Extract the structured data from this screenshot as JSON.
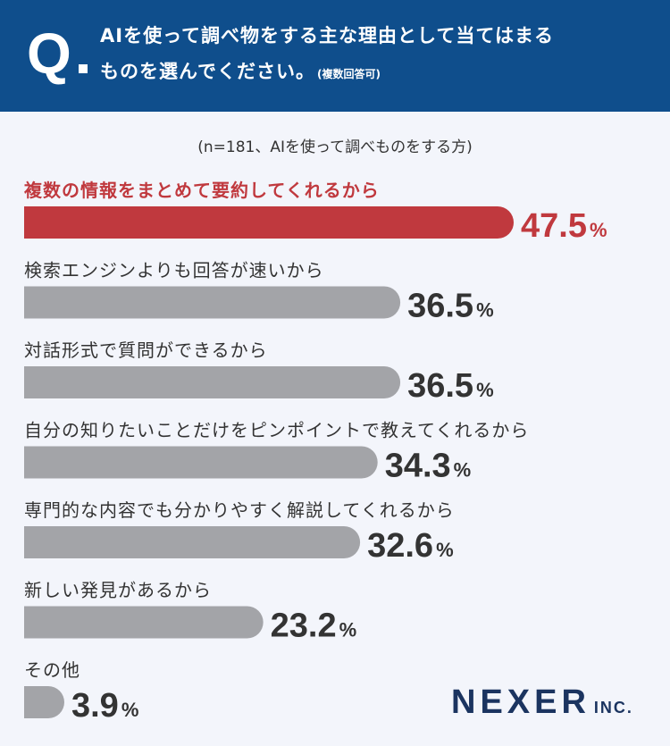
{
  "header": {
    "q_mark": "Q",
    "line1": "AIを使って調べ物をする主な理由として当てはまる",
    "line2": "ものを選んでください。",
    "note": "(複数回答可)"
  },
  "sample_note": "(n=181、AIを使って調べものをする方)",
  "logo": {
    "name": "NEXER",
    "suffix": "INC."
  },
  "colors": {
    "highlight": "#c0393e",
    "bar": "#a3a4a8",
    "header": "#0f4e8c",
    "value_text": "#333333"
  },
  "chart_data": {
    "type": "bar",
    "orientation": "horizontal",
    "unit": "%",
    "categories": [
      "複数の情報をまとめて要約してくれるから",
      "検索エンジンよりも回答が速いから",
      "対話形式で質問ができるから",
      "自分の知りたいことだけをピンポイントで教えてくれるから",
      "専門的な内容でも分かりやすく解説してくれるから",
      "新しい発見があるから",
      "その他"
    ],
    "values": [
      47.5,
      36.5,
      36.5,
      34.3,
      32.6,
      23.2,
      3.9
    ],
    "labels": [
      "47.5",
      "36.5",
      "36.5",
      "34.3",
      "32.6",
      "23.2",
      "3.9"
    ],
    "highlight_index": 0,
    "xlim": [
      0,
      100
    ],
    "grid": false
  }
}
